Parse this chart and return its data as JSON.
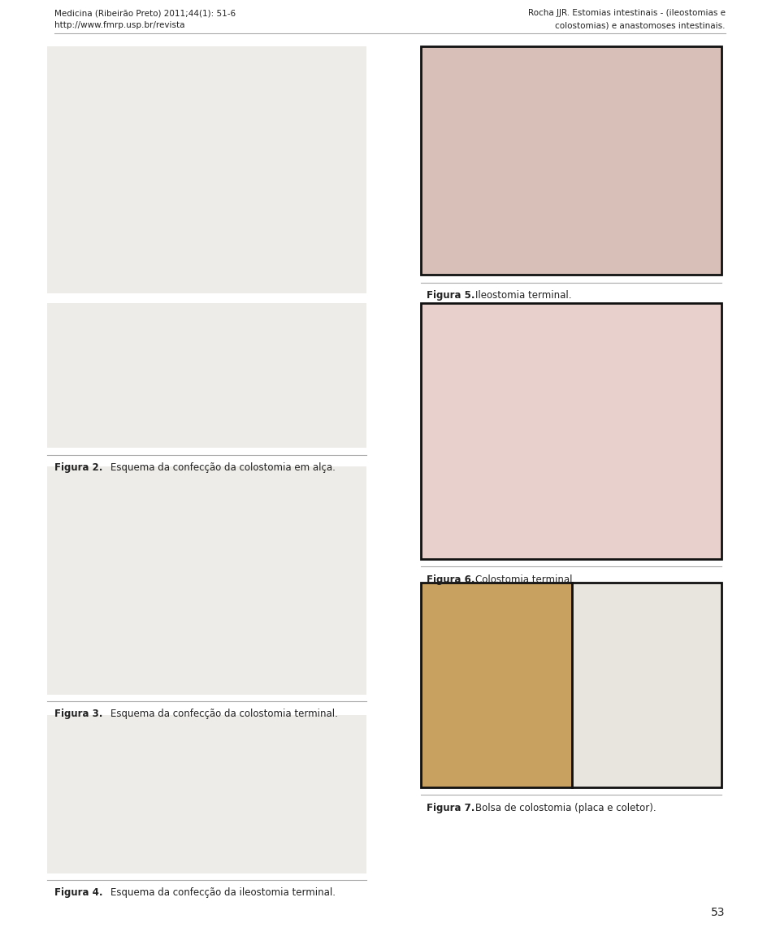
{
  "background_color": "#ffffff",
  "header_left_line1": "Medicina (Ribeirão Preto) 2011;44(1): 51-6",
  "header_left_line2": "http://www.fmrp.usp.br/revista",
  "header_right_line1": "Rocha JJR. Estomias intestinais - (ileostomias e",
  "header_right_line2": "colostomias) e anastomoses intestinais.",
  "fig2_caption_bold": "Figura 2.",
  "fig2_caption_normal": "Esquema da confecção da colostomia em alça.",
  "fig3_caption_bold": "Figura 3.",
  "fig3_caption_normal": "Esquema da confecção da colostomia terminal.",
  "fig4_caption_bold": "Figura 4.",
  "fig4_caption_normal": "Esquema da confecção da ileostomia terminal.",
  "fig5_caption_bold": "Figura 5.",
  "fig5_caption_normal": "Ileostomia terminal.",
  "fig6_caption_bold": "Figura 6.",
  "fig6_caption_normal": "Colostomia terminal.",
  "fig7_caption_bold": "Figura 7.",
  "fig7_caption_normal": "Bolsa de colostomia (placa e coletor).",
  "page_number": "53",
  "header_fontsize": 7.5,
  "caption_fontsize": 8.5,
  "page_num_fontsize": 10,
  "divider_color": "#aaaaaa",
  "text_color": "#222222",
  "sketch_bg": "#eeece8",
  "photo_border": "#111111"
}
